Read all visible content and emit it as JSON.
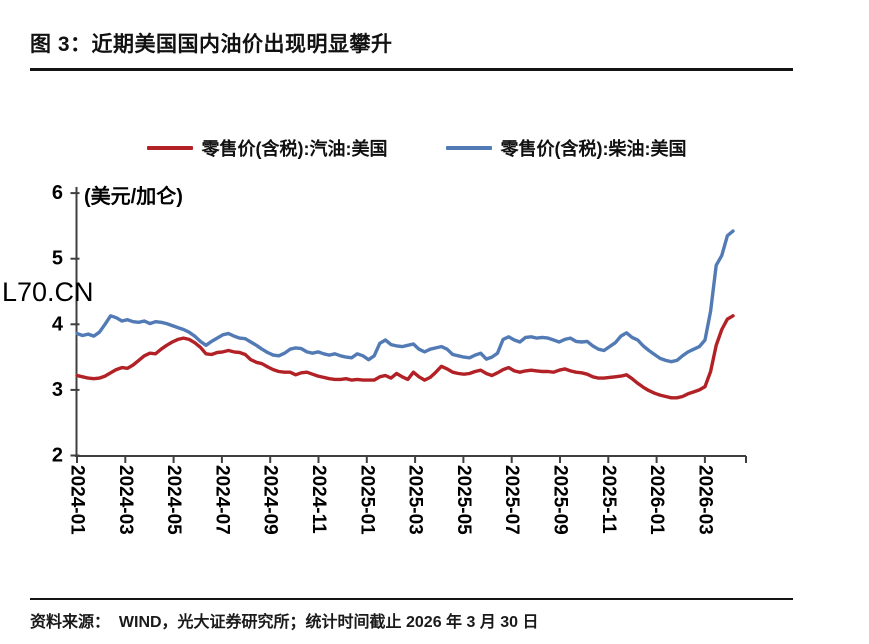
{
  "header": {
    "title": "图 3：近期美国国内油价出现明显攀升"
  },
  "legend": {
    "gasoline": "零售价(含税):汽油:美国",
    "diesel": "零售价(含税):柴油:美国"
  },
  "watermark": "L70.CN",
  "footer": {
    "source": "资料来源：  WIND，光大证券研究所；统计时间截止 2026 年 3 月 30 日"
  },
  "colors": {
    "gasoline": "#b22126",
    "diesel": "#527ab5",
    "watermark": "#e8392c",
    "axis": "#3f3f3f",
    "rule": "#151515"
  },
  "chart_data": {
    "type": "line",
    "title": "图 3：近期美国国内油价出现明显攀升",
    "unit_label": "(美元/加仑)",
    "ylabel": "美元/加仑",
    "ylim": [
      2,
      6
    ],
    "y_ticks": [
      2,
      3,
      4,
      5,
      6
    ],
    "x_ticks": [
      "2024-01",
      "2024-03",
      "2024-05",
      "2024-07",
      "2024-09",
      "2024-11",
      "2025-01",
      "2025-03",
      "2025-05",
      "2025-07",
      "2025-09",
      "2025-11",
      "2026-01",
      "2026-03"
    ],
    "x_range_note": "weekly data, 2024-01-01 to 2026-03-30",
    "grid": false,
    "legend_position": "top",
    "series": [
      {
        "name": "零售价(含税):汽油:美国",
        "color": "#b22126",
        "values": [
          3.22,
          3.2,
          3.18,
          3.17,
          3.18,
          3.21,
          3.26,
          3.31,
          3.34,
          3.33,
          3.38,
          3.45,
          3.52,
          3.56,
          3.55,
          3.62,
          3.68,
          3.73,
          3.77,
          3.79,
          3.77,
          3.72,
          3.65,
          3.55,
          3.54,
          3.57,
          3.58,
          3.6,
          3.58,
          3.57,
          3.54,
          3.46,
          3.42,
          3.4,
          3.35,
          3.31,
          3.28,
          3.27,
          3.27,
          3.23,
          3.26,
          3.27,
          3.24,
          3.21,
          3.19,
          3.17,
          3.16,
          3.16,
          3.17,
          3.15,
          3.16,
          3.15,
          3.15,
          3.15,
          3.2,
          3.22,
          3.18,
          3.25,
          3.2,
          3.16,
          3.27,
          3.2,
          3.15,
          3.19,
          3.27,
          3.36,
          3.32,
          3.27,
          3.25,
          3.24,
          3.25,
          3.28,
          3.3,
          3.25,
          3.22,
          3.26,
          3.31,
          3.34,
          3.29,
          3.27,
          3.29,
          3.3,
          3.29,
          3.28,
          3.28,
          3.27,
          3.3,
          3.32,
          3.29,
          3.27,
          3.26,
          3.24,
          3.2,
          3.18,
          3.18,
          3.19,
          3.2,
          3.21,
          3.23,
          3.17,
          3.1,
          3.04,
          2.99,
          2.95,
          2.92,
          2.9,
          2.88,
          2.88,
          2.9,
          2.94,
          2.97,
          3.0,
          3.05,
          3.28,
          3.68,
          3.92,
          4.08,
          4.13
        ]
      },
      {
        "name": "零售价(含税):柴油:美国",
        "color": "#527ab5",
        "values": [
          3.86,
          3.83,
          3.85,
          3.82,
          3.88,
          4.0,
          4.13,
          4.1,
          4.05,
          4.07,
          4.04,
          4.03,
          4.05,
          4.01,
          4.04,
          4.03,
          4.01,
          3.98,
          3.95,
          3.92,
          3.88,
          3.82,
          3.74,
          3.68,
          3.74,
          3.79,
          3.84,
          3.86,
          3.82,
          3.79,
          3.78,
          3.73,
          3.68,
          3.62,
          3.57,
          3.53,
          3.52,
          3.56,
          3.62,
          3.64,
          3.63,
          3.58,
          3.56,
          3.58,
          3.55,
          3.53,
          3.55,
          3.52,
          3.5,
          3.49,
          3.55,
          3.52,
          3.46,
          3.52,
          3.71,
          3.76,
          3.69,
          3.67,
          3.66,
          3.68,
          3.7,
          3.62,
          3.58,
          3.62,
          3.64,
          3.66,
          3.62,
          3.54,
          3.52,
          3.5,
          3.49,
          3.53,
          3.56,
          3.47,
          3.5,
          3.56,
          3.77,
          3.81,
          3.76,
          3.73,
          3.8,
          3.81,
          3.79,
          3.8,
          3.79,
          3.76,
          3.73,
          3.77,
          3.79,
          3.74,
          3.73,
          3.74,
          3.67,
          3.62,
          3.6,
          3.66,
          3.72,
          3.82,
          3.87,
          3.8,
          3.76,
          3.67,
          3.6,
          3.54,
          3.48,
          3.45,
          3.43,
          3.45,
          3.52,
          3.58,
          3.62,
          3.66,
          3.76,
          4.2,
          4.9,
          5.05,
          5.35,
          5.42
        ]
      }
    ]
  }
}
